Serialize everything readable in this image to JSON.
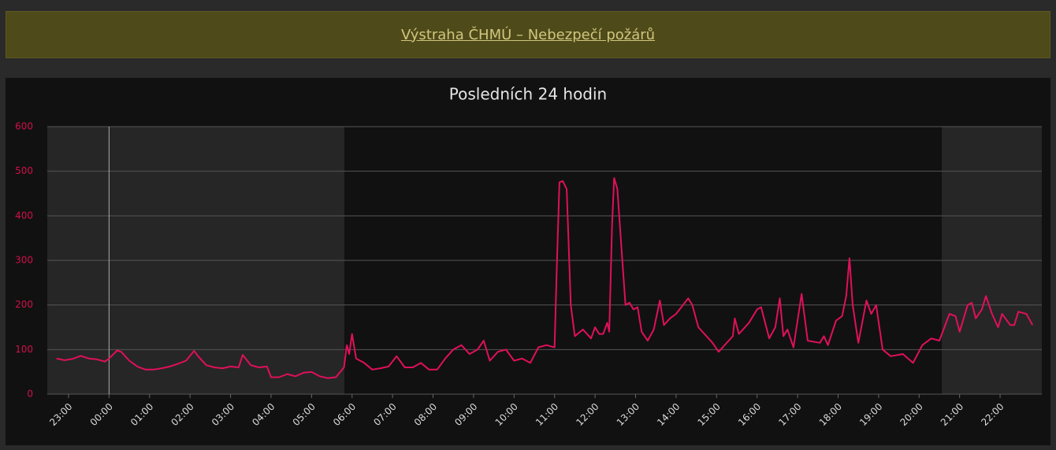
{
  "banner": {
    "text": "Výstraha ČHMÚ – Nebezpečí požárů"
  },
  "chart_data": {
    "type": "line",
    "title": "Posledních 24 hodin",
    "x": [
      -0.3,
      -0.1,
      0.1,
      0.3,
      0.5,
      0.7,
      0.9,
      1.0,
      1.2,
      1.3,
      1.5,
      1.7,
      1.9,
      2.1,
      2.3,
      2.5,
      2.7,
      2.9,
      3.1,
      3.2,
      3.4,
      3.6,
      3.8,
      4.0,
      4.2,
      4.3,
      4.5,
      4.7,
      4.9,
      5.0,
      5.2,
      5.4,
      5.6,
      5.8,
      6.0,
      6.2,
      6.4,
      6.6,
      6.8,
      6.87,
      6.93,
      7.0,
      7.1,
      7.3,
      7.5,
      7.7,
      7.9,
      8.1,
      8.3,
      8.5,
      8.7,
      8.9,
      9.1,
      9.3,
      9.5,
      9.7,
      9.9,
      10.1,
      10.25,
      10.4,
      10.6,
      10.8,
      11.0,
      11.2,
      11.4,
      11.6,
      11.8,
      12.0,
      12.06,
      12.12,
      12.2,
      12.3,
      12.4,
      12.5,
      12.7,
      12.9,
      13.0,
      13.1,
      13.2,
      13.3,
      13.35,
      13.42,
      13.47,
      13.55,
      13.65,
      13.75,
      13.85,
      13.95,
      14.05,
      14.15,
      14.3,
      14.45,
      14.6,
      14.7,
      14.85,
      15.0,
      15.3,
      15.4,
      15.55,
      15.75,
      15.9,
      16.05,
      16.3,
      16.4,
      16.45,
      16.55,
      16.8,
      17.0,
      17.1,
      17.3,
      17.45,
      17.56,
      17.65,
      17.75,
      17.9,
      18.1,
      18.25,
      18.55,
      18.65,
      18.75,
      18.95,
      19.1,
      19.2,
      19.28,
      19.36,
      19.5,
      19.7,
      19.82,
      19.94,
      20.1,
      20.3,
      20.6,
      20.85,
      21.08,
      21.3,
      21.5,
      21.75,
      21.9,
      22.0,
      22.2,
      22.3,
      22.4,
      22.55,
      22.65,
      22.8,
      22.95,
      23.05,
      23.25,
      23.35,
      23.45,
      23.65,
      23.8
    ],
    "series": [
      {
        "color": "#e0105a",
        "values": [
          80,
          76,
          79,
          86,
          80,
          78,
          73,
          80,
          98,
          95,
          75,
          62,
          55,
          55,
          58,
          62,
          68,
          75,
          97,
          85,
          65,
          60,
          58,
          62,
          60,
          88,
          65,
          60,
          62,
          38,
          38,
          45,
          40,
          48,
          50,
          40,
          36,
          38,
          60,
          110,
          90,
          135,
          80,
          70,
          55,
          58,
          62,
          85,
          60,
          60,
          70,
          55,
          55,
          80,
          100,
          110,
          90,
          100,
          120,
          75,
          95,
          100,
          75,
          80,
          70,
          105,
          110,
          105,
          300,
          475,
          478,
          460,
          200,
          130,
          145,
          125,
          150,
          135,
          135,
          160,
          140,
          380,
          485,
          460,
          330,
          200,
          205,
          190,
          195,
          140,
          120,
          145,
          210,
          155,
          170,
          180,
          215,
          200,
          150,
          130,
          115,
          95,
          120,
          130,
          170,
          135,
          160,
          190,
          195,
          125,
          150,
          215,
          130,
          145,
          105,
          225,
          120,
          115,
          130,
          110,
          165,
          175,
          220,
          305,
          200,
          115,
          210,
          180,
          200,
          100,
          85,
          90,
          70,
          110,
          125,
          120,
          180,
          175,
          140,
          200,
          205,
          170,
          190,
          220,
          180,
          150,
          180,
          155,
          155,
          185,
          180,
          155
        ]
      }
    ],
    "xlim": [
      -0.525,
      24.03
    ],
    "xticks": [
      {
        "value": 0,
        "label": "23:00"
      },
      {
        "value": 1,
        "label": "00:00"
      },
      {
        "value": 2,
        "label": "01:00"
      },
      {
        "value": 3,
        "label": "02:00"
      },
      {
        "value": 4,
        "label": "03:00"
      },
      {
        "value": 5,
        "label": "04:00"
      },
      {
        "value": 6,
        "label": "05:00"
      },
      {
        "value": 7,
        "label": "06:00"
      },
      {
        "value": 8,
        "label": "07:00"
      },
      {
        "value": 9,
        "label": "08:00"
      },
      {
        "value": 10,
        "label": "09:00"
      },
      {
        "value": 11,
        "label": "10:00"
      },
      {
        "value": 12,
        "label": "11:00"
      },
      {
        "value": 13,
        "label": "12:00"
      },
      {
        "value": 14,
        "label": "13:00"
      },
      {
        "value": 15,
        "label": "14:00"
      },
      {
        "value": 16,
        "label": "15:00"
      },
      {
        "value": 17,
        "label": "16:00"
      },
      {
        "value": 18,
        "label": "17:00"
      },
      {
        "value": 19,
        "label": "18:00"
      },
      {
        "value": 20,
        "label": "19:00"
      },
      {
        "value": 21,
        "label": "20:00"
      },
      {
        "value": 22,
        "label": "21:00"
      },
      {
        "value": 23,
        "label": "22:00"
      }
    ],
    "ylim": [
      0,
      600
    ],
    "yticks": [
      0,
      100,
      200,
      300,
      400,
      500,
      600
    ],
    "grid": true,
    "bands": [
      {
        "from": -0.525,
        "to": 6.81,
        "color": "#262626"
      },
      {
        "from": 21.56,
        "to": 24.03,
        "color": "#262626"
      }
    ],
    "plot_line": 1
  }
}
